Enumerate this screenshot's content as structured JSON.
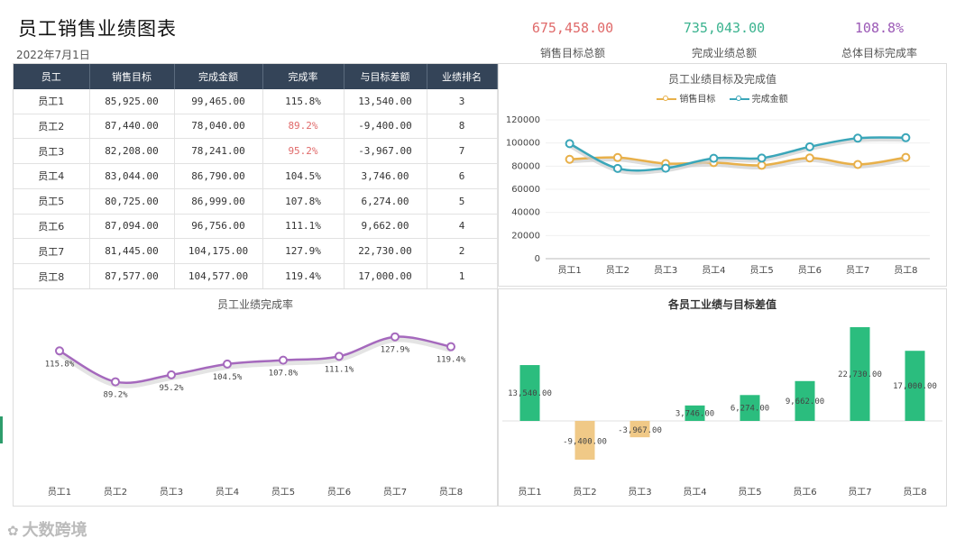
{
  "header": {
    "title": "员工销售业绩图表",
    "date": "2022年7月1日"
  },
  "kpis": [
    {
      "value": "675,458.00",
      "label": "销售目标总额",
      "color": "#e06a6a"
    },
    {
      "value": "735,043.00",
      "label": "完成业绩总额",
      "color": "#3bb38f"
    },
    {
      "value": "108.8%",
      "label": "总体目标完成率",
      "color": "#9b59b6"
    }
  ],
  "table": {
    "headers": [
      "员工",
      "销售目标",
      "完成金额",
      "完成率",
      "与目标差额",
      "业绩排名"
    ],
    "rows": [
      [
        "员工1",
        "85,925.00",
        "99,465.00",
        "115.8%",
        "13,540.00",
        "3"
      ],
      [
        "员工2",
        "87,440.00",
        "78,040.00",
        "89.2%",
        "-9,400.00",
        "8"
      ],
      [
        "员工3",
        "82,208.00",
        "78,241.00",
        "95.2%",
        "-3,967.00",
        "7"
      ],
      [
        "员工4",
        "83,044.00",
        "86,790.00",
        "104.5%",
        "3,746.00",
        "6"
      ],
      [
        "员工5",
        "80,725.00",
        "86,999.00",
        "107.8%",
        "6,274.00",
        "5"
      ],
      [
        "员工6",
        "87,094.00",
        "96,756.00",
        "111.1%",
        "9,662.00",
        "4"
      ],
      [
        "员工7",
        "81,445.00",
        "104,175.00",
        "127.9%",
        "22,730.00",
        "2"
      ],
      [
        "员工8",
        "87,577.00",
        "104,577.00",
        "119.4%",
        "17,000.00",
        "1"
      ]
    ]
  },
  "chart_data": [
    {
      "type": "line",
      "title": "员工业绩目标及完成值",
      "categories": [
        "员工1",
        "员工2",
        "员工3",
        "员工4",
        "员工5",
        "员工6",
        "员工7",
        "员工8"
      ],
      "series": [
        {
          "name": "销售目标",
          "values": [
            85925,
            87440,
            82208,
            83044,
            80725,
            87094,
            81445,
            87577
          ],
          "color": "#e8b04a"
        },
        {
          "name": "完成金额",
          "values": [
            99465,
            78040,
            78241,
            86790,
            86999,
            96756,
            104175,
            104577
          ],
          "color": "#3aa6b9"
        }
      ],
      "yticks": [
        "0",
        "20000",
        "40000",
        "60000",
        "80000",
        "100000",
        "120000"
      ],
      "ylim": [
        0,
        120000
      ],
      "legend": "top-center"
    },
    {
      "type": "line",
      "title": "员工业绩完成率",
      "categories": [
        "员工1",
        "员工2",
        "员工3",
        "员工4",
        "员工5",
        "员工6",
        "员工7",
        "员工8"
      ],
      "values": [
        115.8,
        89.2,
        95.2,
        104.5,
        107.8,
        111.1,
        127.9,
        119.4
      ],
      "labels": [
        "115.8%",
        "89.2%",
        "95.2%",
        "104.5%",
        "107.8%",
        "111.1%",
        "127.9%",
        "119.4%"
      ],
      "color": "#a569bd"
    },
    {
      "type": "bar",
      "title": "各员工业绩与目标差值",
      "categories": [
        "员工1",
        "员工2",
        "员工3",
        "员工4",
        "员工5",
        "员工6",
        "员工7",
        "员工8"
      ],
      "values": [
        13540,
        -9400,
        -3967,
        3746,
        6274,
        9662,
        22730,
        17000
      ],
      "labels": [
        "13,540.00",
        "-9,400.00",
        "-3,967.00",
        "3,746.00",
        "6,274.00",
        "9,662.00",
        "22,730.00",
        "17,000.00"
      ],
      "positive_color": "#2bbd7e",
      "negative_color": "#f0c987"
    }
  ],
  "brand": {
    "text": "大数跨境",
    "logo": "✿"
  }
}
